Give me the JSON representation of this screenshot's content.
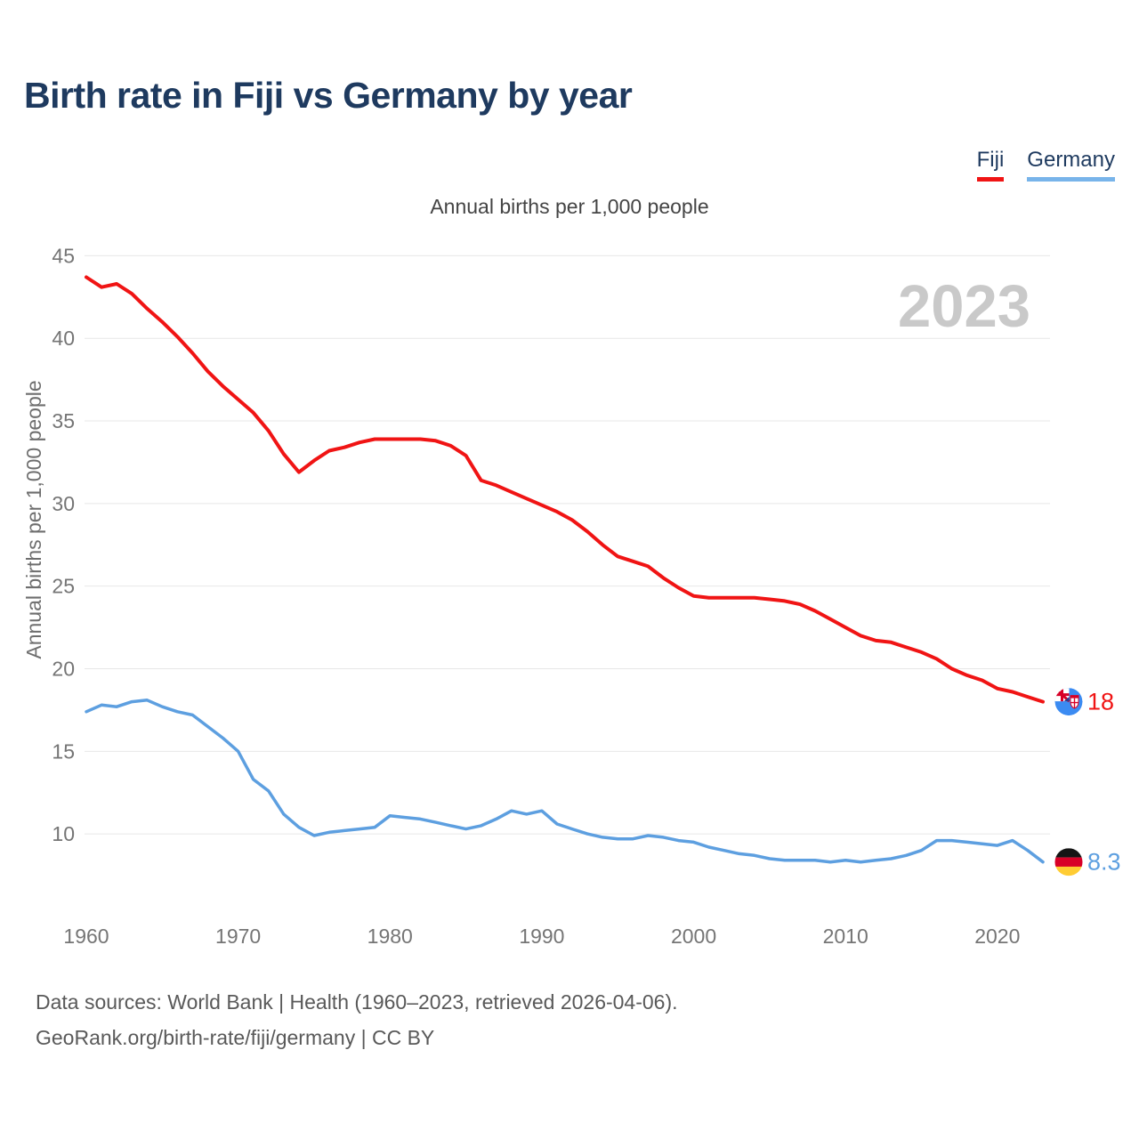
{
  "header": {
    "title": "Birth rate in Fiji vs Germany by year"
  },
  "legend": {
    "items": [
      {
        "label": "Fiji",
        "color": "#f01414"
      },
      {
        "label": "Germany",
        "color": "#78b4ea"
      }
    ]
  },
  "chart": {
    "subtitle": "Annual births per 1,000 people",
    "y_axis_label": "Annual births per 1,000 people",
    "watermark": "2023",
    "end_labels": [
      {
        "series": "Fiji",
        "text": "18",
        "flag": "fiji-flag"
      },
      {
        "series": "Germany",
        "text": "8.3",
        "flag": "germany-flag"
      }
    ]
  },
  "chart_data": {
    "type": "line",
    "title": "Birth rate in Fiji vs Germany by year",
    "subtitle": "Annual births per 1,000 people",
    "xlabel": "",
    "ylabel": "Annual births per 1,000 people",
    "ylim": [
      8,
      45
    ],
    "yticks": [
      45,
      40,
      35,
      30,
      25,
      20,
      15,
      10
    ],
    "xticks": [
      1960,
      1970,
      1980,
      1990,
      2000,
      2010,
      2020
    ],
    "grid": true,
    "legend_position": "top-right",
    "x": [
      1960,
      1961,
      1962,
      1963,
      1964,
      1965,
      1966,
      1967,
      1968,
      1969,
      1970,
      1971,
      1972,
      1973,
      1974,
      1975,
      1976,
      1977,
      1978,
      1979,
      1980,
      1981,
      1982,
      1983,
      1984,
      1985,
      1986,
      1987,
      1988,
      1989,
      1990,
      1991,
      1992,
      1993,
      1994,
      1995,
      1996,
      1997,
      1998,
      1999,
      2000,
      2001,
      2002,
      2003,
      2004,
      2005,
      2006,
      2007,
      2008,
      2009,
      2010,
      2011,
      2012,
      2013,
      2014,
      2015,
      2016,
      2017,
      2018,
      2019,
      2020,
      2021,
      2022,
      2023
    ],
    "series": [
      {
        "name": "Fiji",
        "color": "#f01414",
        "values": [
          43.7,
          43.1,
          43.3,
          42.7,
          41.8,
          41.0,
          40.1,
          39.1,
          38.0,
          37.1,
          36.3,
          35.5,
          34.4,
          33.0,
          31.9,
          32.6,
          33.2,
          33.4,
          33.7,
          33.9,
          33.9,
          33.9,
          33.9,
          33.8,
          33.5,
          32.9,
          31.4,
          31.1,
          30.7,
          30.3,
          29.9,
          29.5,
          29.0,
          28.3,
          27.5,
          26.8,
          26.5,
          26.2,
          25.5,
          24.9,
          24.4,
          24.3,
          24.3,
          24.3,
          24.3,
          24.2,
          24.1,
          23.9,
          23.5,
          23.0,
          22.5,
          22.0,
          21.7,
          21.6,
          21.3,
          21.0,
          20.6,
          20.0,
          19.6,
          19.3,
          18.8,
          18.6,
          18.3,
          18.0
        ],
        "end_label": "18"
      },
      {
        "name": "Germany",
        "color": "#5d9fe0",
        "values": [
          17.4,
          17.8,
          17.7,
          18.0,
          18.1,
          17.7,
          17.4,
          17.2,
          16.5,
          15.8,
          15.0,
          13.3,
          12.6,
          11.2,
          10.4,
          9.9,
          10.1,
          10.2,
          10.3,
          10.4,
          11.1,
          11.0,
          10.9,
          10.7,
          10.5,
          10.3,
          10.5,
          10.9,
          11.4,
          11.2,
          11.4,
          10.6,
          10.3,
          10.0,
          9.8,
          9.7,
          9.7,
          9.9,
          9.8,
          9.6,
          9.5,
          9.2,
          9.0,
          8.8,
          8.7,
          8.5,
          8.4,
          8.4,
          8.4,
          8.3,
          8.4,
          8.3,
          8.4,
          8.5,
          8.7,
          9.0,
          9.6,
          9.6,
          9.5,
          9.4,
          9.3,
          9.6,
          9.0,
          8.3
        ],
        "end_label": "8.3"
      }
    ]
  },
  "footer": {
    "line1": "Data sources: World Bank | Health (1960–2023, retrieved 2026-04-06).",
    "line2": "GeoRank.org/birth-rate/fiji/germany | CC BY"
  }
}
